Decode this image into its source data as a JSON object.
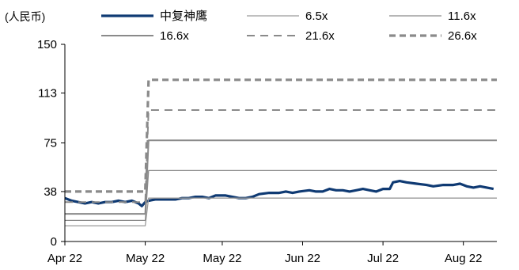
{
  "chart_data": {
    "type": "line",
    "unit_label": "(人民币)",
    "ylim": [
      0,
      150
    ],
    "yticks": [
      0,
      38,
      75,
      113,
      150
    ],
    "xlim": [
      "2022-04-01",
      "2022-08-08"
    ],
    "xticks": [
      {
        "date": "2022-04-01",
        "label": "Apr 22"
      },
      {
        "date": "2022-04-25",
        "label": "May 22"
      },
      {
        "date": "2022-05-18",
        "label": "May 22"
      },
      {
        "date": "2022-06-11",
        "label": "Jun 22"
      },
      {
        "date": "2022-07-05",
        "label": "Jul 22"
      },
      {
        "date": "2022-07-29",
        "label": "Aug 22"
      }
    ],
    "grid": false,
    "legend_position": "top",
    "series": [
      {
        "name": "中复神鹰",
        "color": "#0f3a73",
        "dash": "solid",
        "stroke": "thick",
        "points": [
          [
            "2022-04-01",
            33
          ],
          [
            "2022-04-03",
            31
          ],
          [
            "2022-04-05",
            30
          ],
          [
            "2022-04-07",
            29
          ],
          [
            "2022-04-09",
            30
          ],
          [
            "2022-04-11",
            29
          ],
          [
            "2022-04-13",
            30
          ],
          [
            "2022-04-15",
            30
          ],
          [
            "2022-04-17",
            31
          ],
          [
            "2022-04-19",
            30
          ],
          [
            "2022-04-21",
            31
          ],
          [
            "2022-04-23",
            29
          ],
          [
            "2022-04-24",
            27
          ],
          [
            "2022-04-25",
            30
          ],
          [
            "2022-04-26",
            31
          ],
          [
            "2022-04-28",
            32
          ],
          [
            "2022-05-01",
            32
          ],
          [
            "2022-05-04",
            32
          ],
          [
            "2022-05-06",
            33
          ],
          [
            "2022-05-08",
            33
          ],
          [
            "2022-05-10",
            34
          ],
          [
            "2022-05-12",
            34
          ],
          [
            "2022-05-14",
            33
          ],
          [
            "2022-05-16",
            35
          ],
          [
            "2022-05-19",
            35
          ],
          [
            "2022-05-21",
            34
          ],
          [
            "2022-05-23",
            33
          ],
          [
            "2022-05-25",
            33
          ],
          [
            "2022-05-27",
            34
          ],
          [
            "2022-05-29",
            36
          ],
          [
            "2022-06-01",
            37
          ],
          [
            "2022-06-04",
            37
          ],
          [
            "2022-06-06",
            38
          ],
          [
            "2022-06-08",
            37
          ],
          [
            "2022-06-10",
            38
          ],
          [
            "2022-06-13",
            39
          ],
          [
            "2022-06-15",
            38
          ],
          [
            "2022-06-17",
            38
          ],
          [
            "2022-06-19",
            40
          ],
          [
            "2022-06-21",
            39
          ],
          [
            "2022-06-23",
            39
          ],
          [
            "2022-06-25",
            38
          ],
          [
            "2022-06-27",
            39
          ],
          [
            "2022-06-29",
            40
          ],
          [
            "2022-07-01",
            39
          ],
          [
            "2022-07-03",
            38
          ],
          [
            "2022-07-05",
            40
          ],
          [
            "2022-07-07",
            40
          ],
          [
            "2022-07-08",
            45
          ],
          [
            "2022-07-10",
            46
          ],
          [
            "2022-07-12",
            45
          ],
          [
            "2022-07-15",
            44
          ],
          [
            "2022-07-18",
            43
          ],
          [
            "2022-07-20",
            42
          ],
          [
            "2022-07-23",
            43
          ],
          [
            "2022-07-26",
            43
          ],
          [
            "2022-07-28",
            44
          ],
          [
            "2022-07-30",
            42
          ],
          [
            "2022-08-01",
            41
          ],
          [
            "2022-08-03",
            42
          ],
          [
            "2022-08-05",
            41
          ],
          [
            "2022-08-07",
            40
          ]
        ]
      },
      {
        "name": "6.5x",
        "color": "#9a9a9a",
        "dash": "solid",
        "stroke": "thin",
        "points": [
          [
            "2022-04-01",
            12
          ],
          [
            "2022-04-25",
            12
          ],
          [
            "2022-04-26",
            33
          ],
          [
            "2022-08-08",
            33
          ]
        ]
      },
      {
        "name": "11.6x",
        "color": "#8a8a8a",
        "dash": "solid",
        "stroke": "thin",
        "points": [
          [
            "2022-04-01",
            16
          ],
          [
            "2022-04-25",
            16
          ],
          [
            "2022-04-26",
            54
          ],
          [
            "2022-08-08",
            54
          ]
        ]
      },
      {
        "name": "16.6x",
        "color": "#8a8a8a",
        "dash": "solid",
        "stroke": "medium",
        "points": [
          [
            "2022-04-01",
            21
          ],
          [
            "2022-04-25",
            21
          ],
          [
            "2022-04-26",
            77
          ],
          [
            "2022-08-08",
            77
          ]
        ]
      },
      {
        "name": "21.6x",
        "color": "#8a8a8a",
        "dash": "dash",
        "stroke": "medium",
        "points": [
          [
            "2022-04-01",
            30
          ],
          [
            "2022-04-25",
            30
          ],
          [
            "2022-04-26",
            100
          ],
          [
            "2022-08-08",
            100
          ]
        ]
      },
      {
        "name": "26.6x",
        "color": "#8a8a8a",
        "dash": "dash",
        "stroke": "thick",
        "points": [
          [
            "2022-04-01",
            38
          ],
          [
            "2022-04-25",
            38
          ],
          [
            "2022-04-26",
            123
          ],
          [
            "2022-08-08",
            123
          ]
        ]
      }
    ]
  }
}
